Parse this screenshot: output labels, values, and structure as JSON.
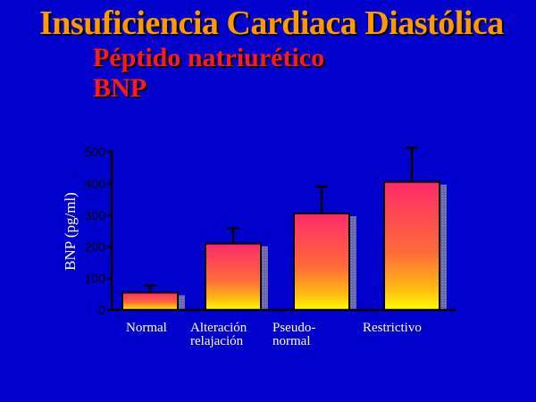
{
  "slide": {
    "title": "Insuficiencia Cardiaca Diastólica",
    "subtitle_line1": "Péptido natriurético",
    "subtitle_line2": "BNP"
  },
  "colors": {
    "background": "#0000cc",
    "title": "#ff9900",
    "subtitle": "#ff1a1a",
    "bar_top": "#ff2a6a",
    "bar_bottom": "#ffff00",
    "axis": "#000000"
  },
  "chart_data": {
    "type": "bar",
    "title": "",
    "ylabel": "BNP (pg/ml)",
    "xlabel": "",
    "ylim": [
      0,
      500
    ],
    "yticks": [
      0,
      100,
      200,
      300,
      400,
      500
    ],
    "categories": [
      [
        "Normal"
      ],
      [
        "Alteración",
        "relajación"
      ],
      [
        "Pseudo-",
        "normal"
      ],
      [
        "Restrictivo"
      ]
    ],
    "values": [
      55,
      210,
      305,
      405
    ],
    "error_upper": [
      77,
      258,
      390,
      513
    ],
    "grid": false,
    "legend": "none"
  }
}
